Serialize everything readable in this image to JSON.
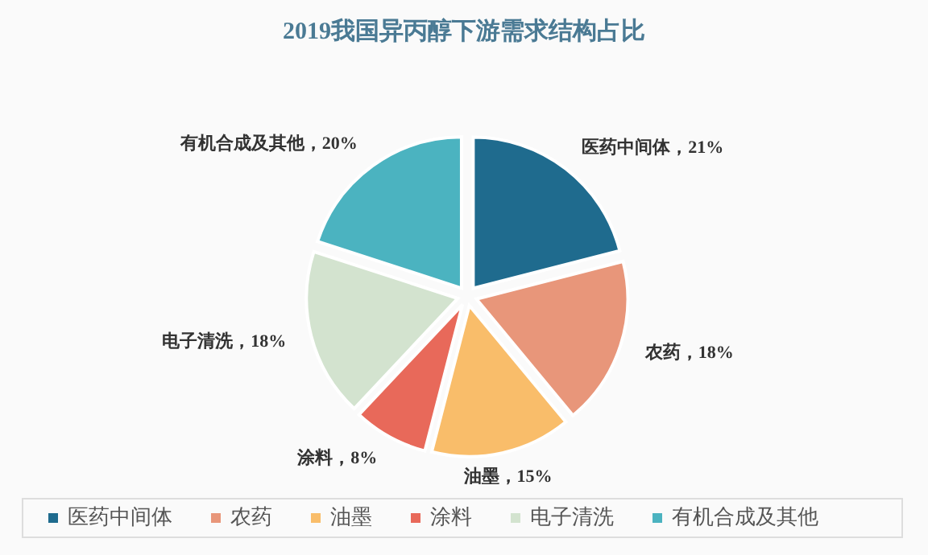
{
  "chart_data": {
    "type": "pie",
    "title": "2019我国异丙醇下游需求结构占比",
    "categories": [
      "医药中间体",
      "农药",
      "油墨",
      "涂料",
      "电子清洗",
      "有机合成及其他"
    ],
    "values": [
      21,
      18,
      15,
      8,
      18,
      20
    ],
    "colors": [
      "#1f6b8e",
      "#e8967a",
      "#f9bd6a",
      "#e8695a",
      "#d3e3cf",
      "#4bb3c0"
    ],
    "value_labels": [
      "医药中间体，21%",
      "农药，18%",
      "油墨，15%",
      "涂料，8%",
      "电子清洗，18%",
      "有机合成及其他，20%"
    ],
    "legend": "bottom"
  }
}
